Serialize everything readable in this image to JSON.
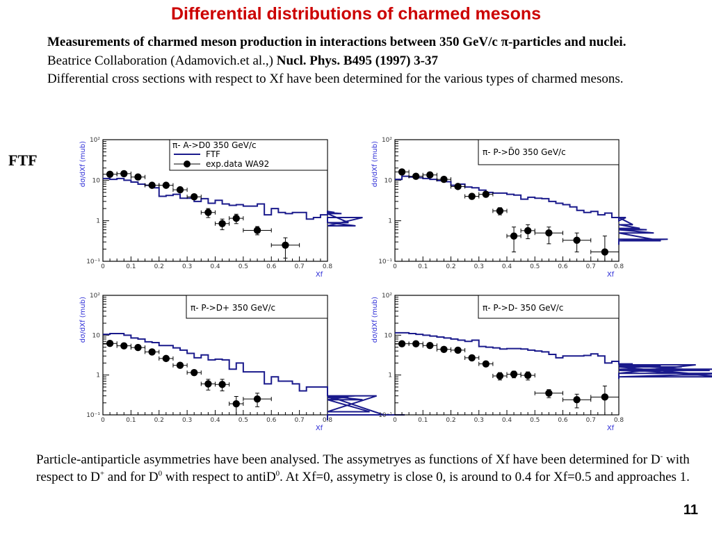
{
  "slide": {
    "title": "Differential distributions of charmed mesons",
    "intro_bold_1": "Measurements of charmed meson production in interactions between 350 GeV/c π-particles and nuclei.",
    "intro_normal_1": " Beatrice Collaboration (Adamovich.et al.,) ",
    "intro_bold_2": "Nucl. Phys. B495 (1997) 3-37",
    "intro_line_2": "Differential cross sections with respect to Xf  have been determined for the various types of charmed mesons.",
    "side_label": "FTF",
    "bottom_text_1": "Particle-antiparticle asymmetries have been analysed. The assymetryes as functions of Xf  have been determined for D",
    "bottom_sup_1": "-",
    "bottom_text_2": "  with respect to D",
    "bottom_sup_2": "+",
    "bottom_text_3": " and for D",
    "bottom_sup_3": "0",
    "bottom_text_4": " with respect to  antiD",
    "bottom_sup_4": "0",
    "bottom_text_5": ".  At Xf=0, assymetry is close 0,  is around to 0.4 for Xf=0.5 and approaches 1.",
    "page_number": "11"
  },
  "colors": {
    "title": "#cc0000",
    "ftf_line": "#1a1a8c",
    "axis_title": "#2b2bd6",
    "data_points": "#000000"
  },
  "chart_data": [
    {
      "type": "line",
      "id": "d0-pi-A",
      "title": "π- A->D0  350 GeV/c",
      "xlabel": "Xf",
      "ylabel": "dσ/dXf (mub)",
      "xlim": [
        0,
        0.8
      ],
      "ylim": [
        0.1,
        100
      ],
      "yscale": "log",
      "x_ticks": [
        "0",
        "0.1",
        "0.2",
        "0.3",
        "0.4",
        "0.5",
        "0.6",
        "0.7",
        "0.8"
      ],
      "y_ticks": [
        "10⁻¹",
        "1",
        "10",
        "10²"
      ],
      "legend": [
        "FTF",
        "exp.data WA92"
      ],
      "legend_position": "top-right",
      "ftf_bin_width": 0.025,
      "ftf": [
        11,
        10.5,
        11,
        10,
        9,
        8,
        7.5,
        6.5,
        4,
        4.2,
        4.5,
        3.6,
        3.6,
        3,
        3.5,
        2.7,
        3.2,
        2.6,
        2.4,
        2.5,
        2.3,
        2.3,
        2.6,
        1.4,
        2,
        1.6,
        1.5,
        1.6,
        1.6,
        1.1,
        1.2,
        1.4,
        1.7,
        1.6,
        1.5,
        0.9,
        0.75,
        1.2
      ],
      "exp": [
        {
          "x": 0.025,
          "y": 14,
          "xerr": 0.025,
          "ylo": 13,
          "yhi": 15
        },
        {
          "x": 0.075,
          "y": 14.5,
          "xerr": 0.025,
          "ylo": 13.5,
          "yhi": 15.5
        },
        {
          "x": 0.125,
          "y": 12,
          "xerr": 0.025,
          "ylo": 11,
          "yhi": 13
        },
        {
          "x": 0.175,
          "y": 7.5,
          "xerr": 0.025,
          "ylo": 7,
          "yhi": 8
        },
        {
          "x": 0.225,
          "y": 7.5,
          "xerr": 0.025,
          "ylo": 7,
          "yhi": 8
        },
        {
          "x": 0.275,
          "y": 5.8,
          "xerr": 0.025,
          "ylo": 5.3,
          "yhi": 6.3
        },
        {
          "x": 0.325,
          "y": 3.9,
          "xerr": 0.025,
          "ylo": 3.5,
          "yhi": 4.3
        },
        {
          "x": 0.375,
          "y": 1.6,
          "xerr": 0.025,
          "ylo": 1.2,
          "yhi": 2.0
        },
        {
          "x": 0.425,
          "y": 0.85,
          "xerr": 0.025,
          "ylo": 0.6,
          "yhi": 1.1
        },
        {
          "x": 0.475,
          "y": 1.15,
          "xerr": 0.025,
          "ylo": 0.85,
          "yhi": 1.45
        },
        {
          "x": 0.55,
          "y": 0.58,
          "xerr": 0.05,
          "ylo": 0.45,
          "yhi": 0.72
        },
        {
          "x": 0.65,
          "y": 0.25,
          "xerr": 0.05,
          "ylo": 0.12,
          "yhi": 0.38
        }
      ]
    },
    {
      "type": "line",
      "id": "d0bar-pi-P",
      "title": "π- P->D̄0  350 GeV/c",
      "xlabel": "Xf",
      "ylabel": "dσ/dXf (mub)",
      "xlim": [
        0,
        0.8
      ],
      "ylim": [
        0.1,
        100
      ],
      "yscale": "log",
      "x_ticks": [
        "0",
        "0.1",
        "0.2",
        "0.3",
        "0.4",
        "0.5",
        "0.6",
        "0.7",
        "0.8"
      ],
      "y_ticks": [
        "10⁻¹",
        "1",
        "10",
        "10²"
      ],
      "legend": [],
      "legend_position": "top-right",
      "ftf_bin_width": 0.025,
      "ftf": [
        10.5,
        12.5,
        12,
        11.5,
        11,
        10.5,
        9.8,
        9.2,
        7.5,
        8,
        6.8,
        6.5,
        5.7,
        5,
        4.8,
        4.8,
        4.5,
        4.3,
        3.4,
        3.8,
        3.6,
        3.5,
        3,
        2.7,
        2.5,
        2.2,
        1.8,
        1.6,
        1.7,
        1.4,
        1.55,
        1.2,
        1,
        1.2,
        0.8,
        0.65,
        0.6,
        0.5,
        0.32,
        0.35
      ],
      "exp": [
        {
          "x": 0.025,
          "y": 16,
          "xerr": 0.025,
          "ylo": 14.5,
          "yhi": 17.5
        },
        {
          "x": 0.075,
          "y": 12.5,
          "xerr": 0.025,
          "ylo": 11.5,
          "yhi": 13.5
        },
        {
          "x": 0.125,
          "y": 13.5,
          "xerr": 0.025,
          "ylo": 12.5,
          "yhi": 14.5
        },
        {
          "x": 0.175,
          "y": 10.5,
          "xerr": 0.025,
          "ylo": 9.5,
          "yhi": 11.5
        },
        {
          "x": 0.225,
          "y": 7,
          "xerr": 0.025,
          "ylo": 6.4,
          "yhi": 7.6
        },
        {
          "x": 0.275,
          "y": 4,
          "xerr": 0.025,
          "ylo": 3.6,
          "yhi": 4.4
        },
        {
          "x": 0.325,
          "y": 4.5,
          "xerr": 0.025,
          "ylo": 4.1,
          "yhi": 4.9
        },
        {
          "x": 0.375,
          "y": 1.75,
          "xerr": 0.025,
          "ylo": 1.4,
          "yhi": 2.1
        },
        {
          "x": 0.425,
          "y": 0.42,
          "xerr": 0.025,
          "ylo": 0.17,
          "yhi": 0.7
        },
        {
          "x": 0.475,
          "y": 0.57,
          "xerr": 0.025,
          "ylo": 0.36,
          "yhi": 0.8
        },
        {
          "x": 0.55,
          "y": 0.5,
          "xerr": 0.05,
          "ylo": 0.27,
          "yhi": 0.7
        },
        {
          "x": 0.65,
          "y": 0.33,
          "xerr": 0.05,
          "ylo": 0.17,
          "yhi": 0.5
        },
        {
          "x": 0.75,
          "y": 0.17,
          "xerr": 0.05,
          "ylo": 0.1,
          "yhi": 0.42
        }
      ]
    },
    {
      "type": "line",
      "id": "dplus-pi-P",
      "title": "π- P->D+  350 GeV/c",
      "xlabel": "Xf",
      "ylabel": "dσ/dXf (mub)",
      "xlim": [
        0,
        0.8
      ],
      "ylim": [
        0.1,
        100
      ],
      "yscale": "log",
      "x_ticks": [
        "0",
        "0.1",
        "0.2",
        "0.3",
        "0.4",
        "0.5",
        "0.6",
        "0.7",
        "0.8"
      ],
      "y_ticks": [
        "10⁻¹",
        "1",
        "10",
        "10²"
      ],
      "legend": [],
      "legend_position": "top-right",
      "ftf_bin_width": 0.025,
      "ftf": [
        10.5,
        11,
        11,
        10,
        8.5,
        8,
        6.8,
        6.5,
        5.5,
        5.5,
        4.8,
        4.2,
        3.5,
        2.7,
        3.2,
        2.4,
        2.5,
        2.4,
        1.4,
        2,
        1.2,
        1.2,
        1.2,
        0.6,
        0.9,
        0.7,
        0.7,
        0.6,
        0.4,
        0.5,
        0.5,
        0.5,
        0.3,
        0.24,
        0.27,
        0.27,
        0.3,
        0.24,
        0.12,
        0.3,
        0.1,
        0.1,
        0.1,
        0.1
      ],
      "exp": [
        {
          "x": 0.025,
          "y": 6.2,
          "xerr": 0.025,
          "ylo": 5.6,
          "yhi": 6.8
        },
        {
          "x": 0.075,
          "y": 5.4,
          "xerr": 0.025,
          "ylo": 4.9,
          "yhi": 5.9
        },
        {
          "x": 0.125,
          "y": 4.9,
          "xerr": 0.025,
          "ylo": 4.4,
          "yhi": 5.4
        },
        {
          "x": 0.175,
          "y": 3.8,
          "xerr": 0.025,
          "ylo": 3.4,
          "yhi": 4.2
        },
        {
          "x": 0.225,
          "y": 2.6,
          "xerr": 0.025,
          "ylo": 2.3,
          "yhi": 2.9
        },
        {
          "x": 0.275,
          "y": 1.75,
          "xerr": 0.025,
          "ylo": 1.55,
          "yhi": 1.95
        },
        {
          "x": 0.325,
          "y": 1.15,
          "xerr": 0.025,
          "ylo": 1.0,
          "yhi": 1.3
        },
        {
          "x": 0.375,
          "y": 0.6,
          "xerr": 0.025,
          "ylo": 0.42,
          "yhi": 0.78
        },
        {
          "x": 0.425,
          "y": 0.58,
          "xerr": 0.025,
          "ylo": 0.4,
          "yhi": 0.78
        },
        {
          "x": 0.475,
          "y": 0.19,
          "xerr": 0.025,
          "ylo": 0.1,
          "yhi": 0.29
        },
        {
          "x": 0.55,
          "y": 0.25,
          "xerr": 0.05,
          "ylo": 0.16,
          "yhi": 0.35
        }
      ]
    },
    {
      "type": "line",
      "id": "dminus-pi-P",
      "title": "π- P->D-  350 GeV/c",
      "xlabel": "Xf",
      "ylabel": "dσ/dXf (mub)",
      "xlim": [
        0,
        0.8
      ],
      "ylim": [
        0.1,
        100
      ],
      "yscale": "log",
      "x_ticks": [
        "0",
        "0.1",
        "0.2",
        "0.3",
        "0.4",
        "0.5",
        "0.6",
        "0.7",
        "0.8"
      ],
      "y_ticks": [
        "10⁻¹",
        "1",
        "10",
        "10²"
      ],
      "legend": [],
      "legend_position": "top-right",
      "ftf_bin_width": 0.025,
      "ftf": [
        11.5,
        11.5,
        11,
        10.5,
        10,
        9.5,
        9,
        8.5,
        8,
        7.5,
        7,
        7.5,
        5.2,
        5,
        4.8,
        4.5,
        4.6,
        4.6,
        4.5,
        4.2,
        4,
        3.8,
        3.3,
        2.7,
        3,
        3,
        3,
        3.1,
        3.4,
        3,
        2,
        2.2,
        1.9,
        1.9,
        1.9,
        1.6,
        1.8,
        1.8,
        1.7,
        1.1,
        1.6,
        1.6,
        1.1,
        1.8,
        1.3,
        1.3,
        1.4,
        0.9,
        1.1
      ],
      "exp": [
        {
          "x": 0.025,
          "y": 6.1,
          "xerr": 0.025,
          "ylo": 5.5,
          "yhi": 6.7
        },
        {
          "x": 0.075,
          "y": 6.1,
          "xerr": 0.025,
          "ylo": 5.5,
          "yhi": 6.7
        },
        {
          "x": 0.125,
          "y": 5.5,
          "xerr": 0.025,
          "ylo": 5.0,
          "yhi": 6.0
        },
        {
          "x": 0.175,
          "y": 4.4,
          "xerr": 0.025,
          "ylo": 4.0,
          "yhi": 4.8
        },
        {
          "x": 0.225,
          "y": 4.2,
          "xerr": 0.025,
          "ylo": 3.8,
          "yhi": 4.6
        },
        {
          "x": 0.275,
          "y": 2.7,
          "xerr": 0.025,
          "ylo": 2.4,
          "yhi": 3.0
        },
        {
          "x": 0.325,
          "y": 1.9,
          "xerr": 0.025,
          "ylo": 1.7,
          "yhi": 2.1
        },
        {
          "x": 0.375,
          "y": 0.95,
          "xerr": 0.025,
          "ylo": 0.75,
          "yhi": 1.15
        },
        {
          "x": 0.425,
          "y": 1.05,
          "xerr": 0.025,
          "ylo": 0.85,
          "yhi": 1.25
        },
        {
          "x": 0.475,
          "y": 0.98,
          "xerr": 0.025,
          "ylo": 0.75,
          "yhi": 1.2
        },
        {
          "x": 0.55,
          "y": 0.35,
          "xerr": 0.05,
          "ylo": 0.27,
          "yhi": 0.43
        },
        {
          "x": 0.65,
          "y": 0.24,
          "xerr": 0.05,
          "ylo": 0.15,
          "yhi": 0.33
        },
        {
          "x": 0.75,
          "y": 0.28,
          "xerr": 0.05,
          "ylo": 0.1,
          "yhi": 0.53
        }
      ]
    }
  ]
}
